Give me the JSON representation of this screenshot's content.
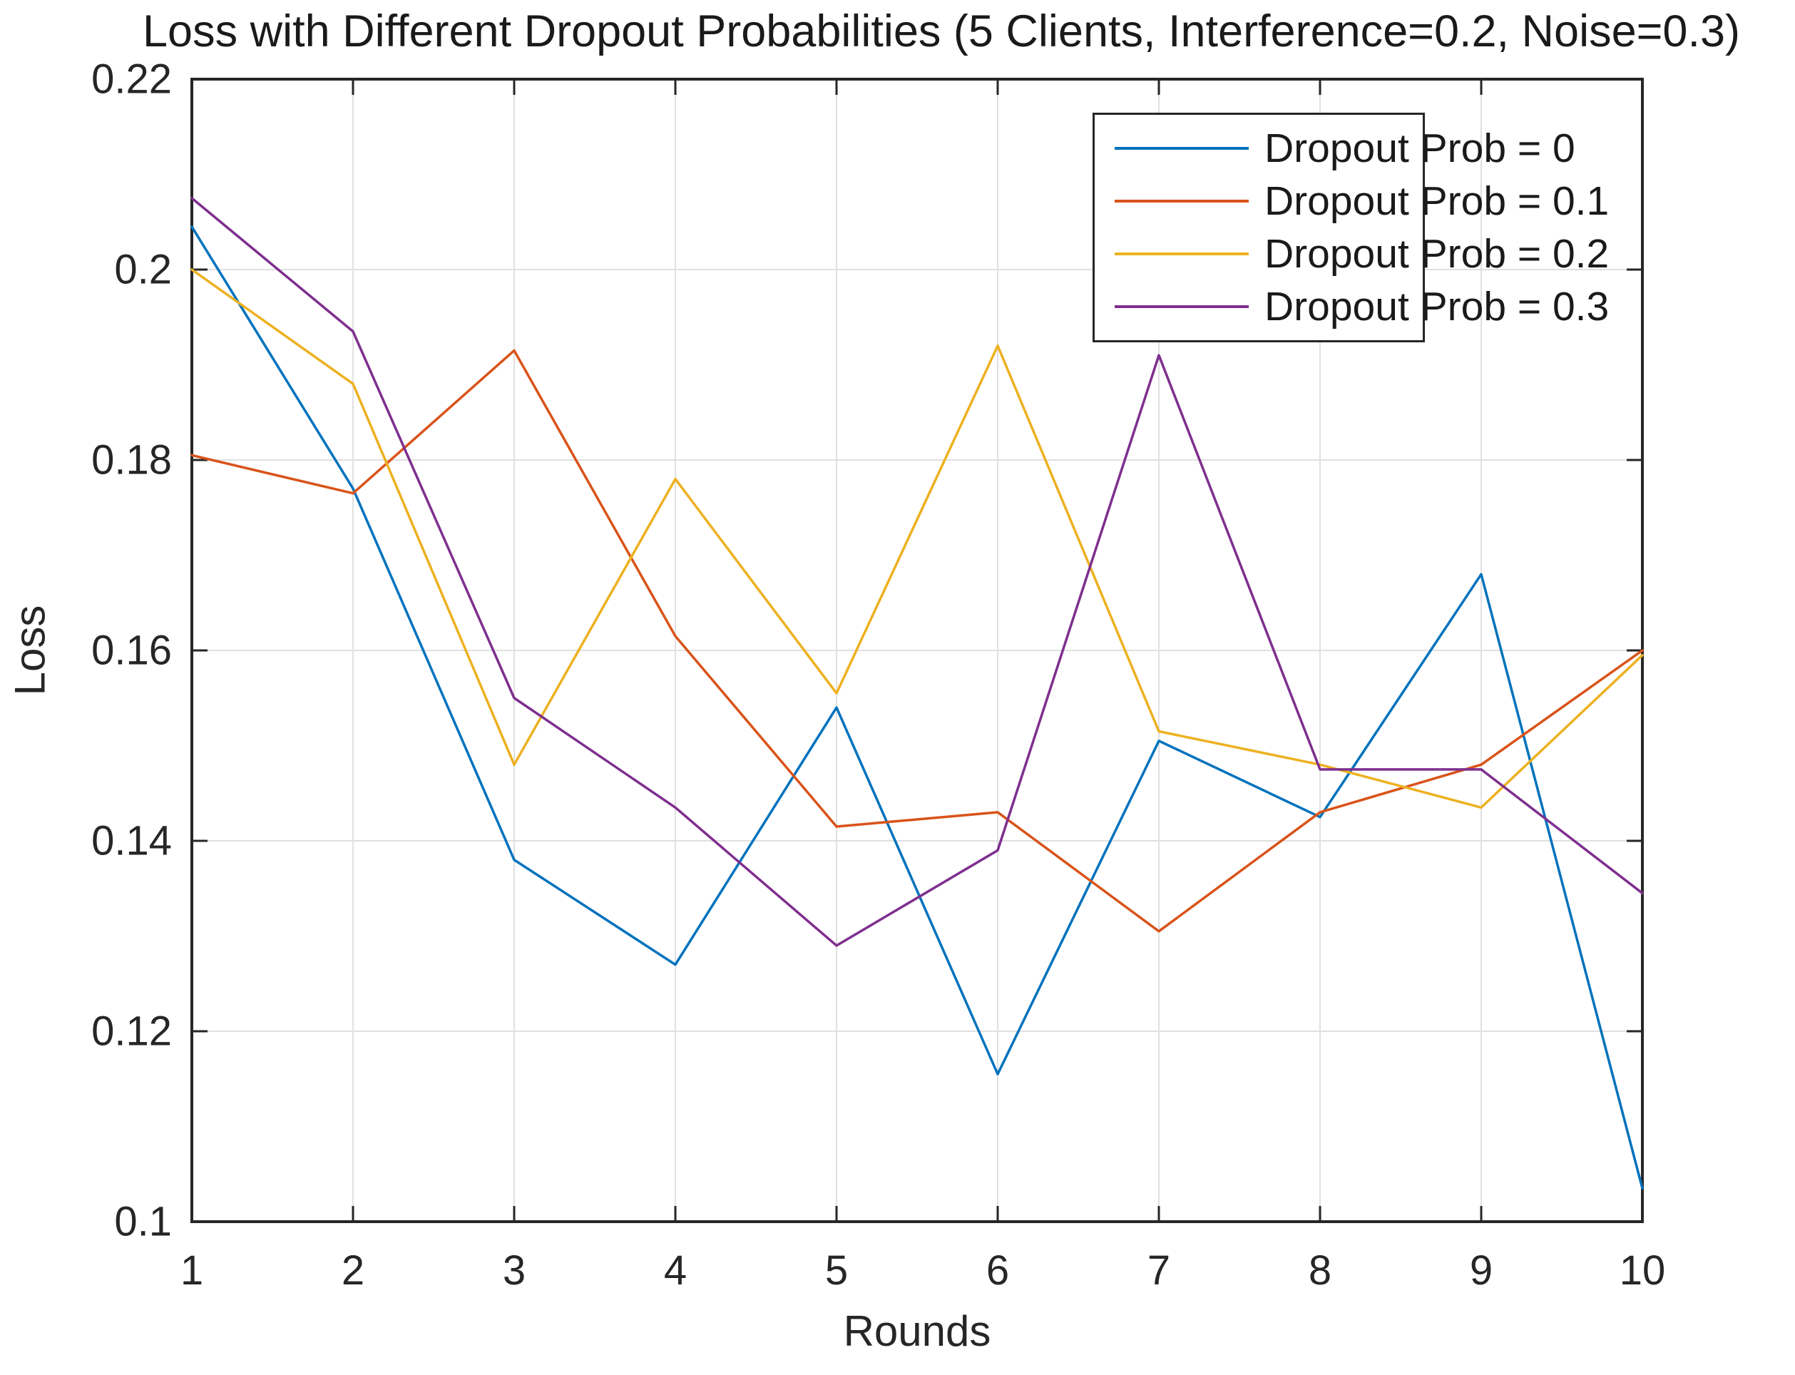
{
  "chart_data": {
    "type": "line",
    "title": "Loss with Different Dropout Probabilities (5 Clients, Interference=0.2, Noise=0.3)",
    "xlabel": "Rounds",
    "ylabel": "Loss",
    "xlim": [
      1,
      10
    ],
    "ylim": [
      0.1,
      0.22
    ],
    "xticks": [
      1,
      2,
      3,
      4,
      5,
      6,
      7,
      8,
      9,
      10
    ],
    "yticks": [
      0.1,
      0.12,
      0.14,
      0.16,
      0.18,
      0.2,
      0.22
    ],
    "ytick_labels": [
      "0.1",
      "0.12",
      "0.14",
      "0.16",
      "0.18",
      "0.2",
      "0.22"
    ],
    "grid": true,
    "legend_position": "inside-top-right",
    "x": [
      1,
      2,
      3,
      4,
      5,
      6,
      7,
      8,
      9,
      10
    ],
    "series": [
      {
        "name": "Dropout Prob = 0",
        "color": "#0072BD",
        "values": [
          0.2045,
          0.177,
          0.138,
          0.127,
          0.154,
          0.1155,
          0.1505,
          0.1425,
          0.168,
          0.1035
        ]
      },
      {
        "name": "Dropout Prob = 0.1",
        "color": "#D95319",
        "values": [
          0.1805,
          0.1765,
          0.1915,
          0.1615,
          0.1415,
          0.143,
          0.1305,
          0.143,
          0.148,
          0.16
        ]
      },
      {
        "name": "Dropout Prob = 0.2",
        "color": "#EDB120",
        "values": [
          0.2,
          0.188,
          0.148,
          0.178,
          0.1555,
          0.192,
          0.1515,
          0.148,
          0.1435,
          0.1595
        ]
      },
      {
        "name": "Dropout Prob = 0.3",
        "color": "#7E2F8E",
        "values": [
          0.2075,
          0.1935,
          0.155,
          0.1435,
          0.129,
          0.139,
          0.191,
          0.1475,
          0.1475,
          0.1345
        ]
      }
    ]
  },
  "figure": {
    "background": "#ffffff",
    "axis_color": "#262626",
    "grid_color": "#e0e0e0"
  }
}
